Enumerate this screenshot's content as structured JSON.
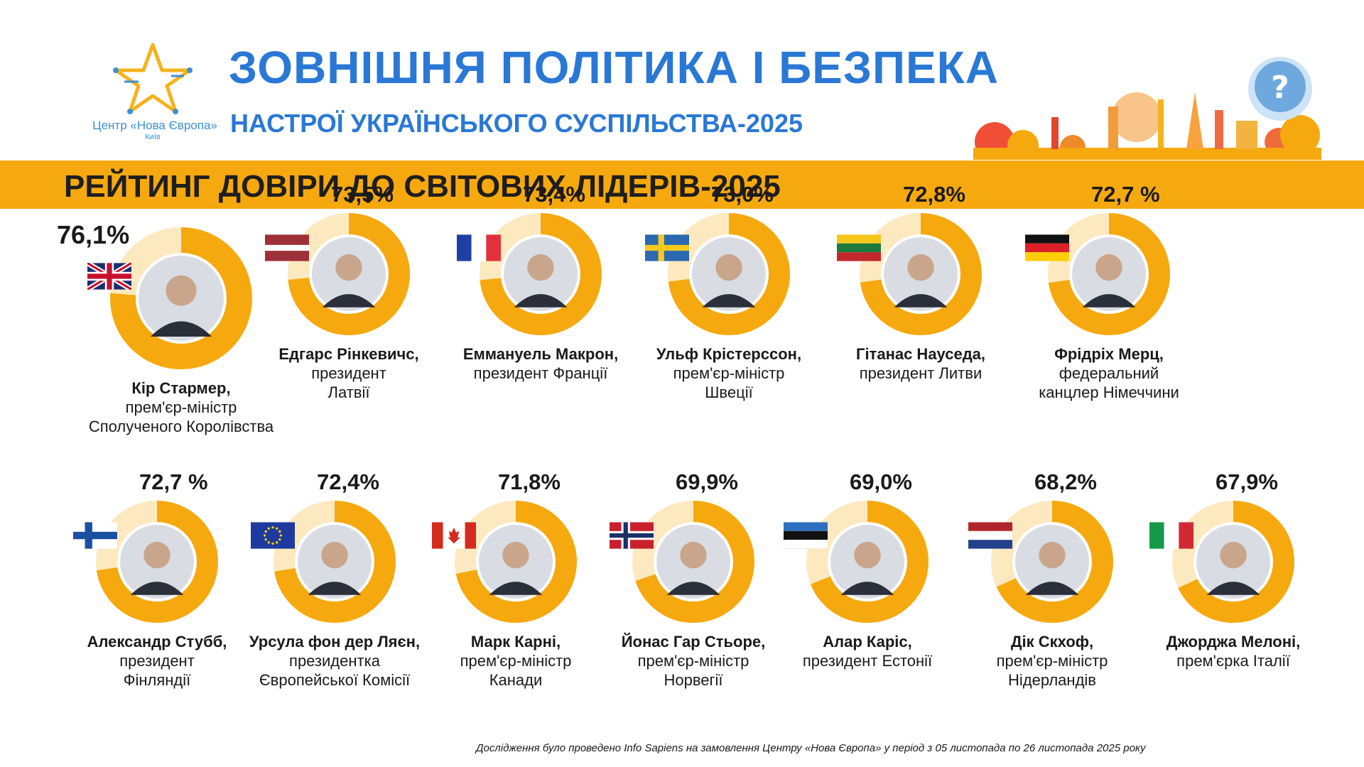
{
  "logo": {
    "name": "Центр «Нова Європа»",
    "city": "Київ"
  },
  "header": {
    "title": "ЗОВНІШНЯ ПОЛІТИКА І БЕЗПЕКА",
    "subtitle": "НАСТРОЇ УКРАЇНСЬКОГО СУСПІЛЬСТВА-2025"
  },
  "banner": "РЕЙТИНГ ДОВІРИ ДО СВІТОВИХ ЛІДЕРІВ-2025",
  "footnote": "Дослідження було проведено Info Sapiens на замовлення Центру «Нова Європа» у період з 05 листопада по 26 листопада 2025 року",
  "colors": {
    "accent": "#f6a90e",
    "title": "#2a78d6",
    "ring_bg": "#fde9bf"
  },
  "chart_data": {
    "type": "bar",
    "title": "РЕЙТИНГ ДОВІРИ ДО СВІТОВИХ ЛІДЕРІВ-2025",
    "unit": "%",
    "leaders": [
      {
        "label": "76,1%",
        "value": 76.1,
        "name": "Кір Стармер,",
        "role1": "прем'єр-міністр",
        "role2": "Сполученого Королівства",
        "flag": "uk"
      },
      {
        "label": "73,5%",
        "value": 73.5,
        "name": "Едгарс Рінкевичс,",
        "role1": "президент",
        "role2": "Латвії",
        "flag": "lv"
      },
      {
        "label": "73,4%",
        "value": 73.4,
        "name": "Еммануель Макрон,",
        "role1": "президент Франції",
        "role2": "",
        "flag": "fr"
      },
      {
        "label": "73,0%",
        "value": 73.0,
        "name": "Ульф Крістерссон,",
        "role1": "прем'єр-міністр",
        "role2": "Швеції",
        "flag": "se"
      },
      {
        "label": "72,8%",
        "value": 72.8,
        "name": "Гітанас Науседа,",
        "role1": "президент Литви",
        "role2": "",
        "flag": "lt"
      },
      {
        "label": "72,7 %",
        "value": 72.7,
        "name": "Фрідріх Мерц,",
        "role1": "федеральний",
        "role2": "канцлер Німеччини",
        "flag": "de"
      },
      {
        "label": "72,7 %",
        "value": 72.7,
        "name": "Александр Стубб,",
        "role1": "президент",
        "role2": "Фінляндії",
        "flag": "fi"
      },
      {
        "label": "72,4%",
        "value": 72.4,
        "name": "Урсула фон дер Ляєн,",
        "role1": "президентка",
        "role2": "Європейської Комісії",
        "flag": "eu"
      },
      {
        "label": "71,8%",
        "value": 71.8,
        "name": "Марк Карні,",
        "role1": "прем'єр-міністр",
        "role2": "Канади",
        "flag": "ca"
      },
      {
        "label": "69,9%",
        "value": 69.9,
        "name": "Йонас Гар Стьоре,",
        "role1": "прем'єр-міністр",
        "role2": "Норвегії",
        "flag": "no"
      },
      {
        "label": "69,0%",
        "value": 69.0,
        "name": "Алар Каріс,",
        "role1": "президент Естонії",
        "role2": "",
        "flag": "ee"
      },
      {
        "label": "68,2%",
        "value": 68.2,
        "name": "Дік Скхоф,",
        "role1": "прем'єр-міністр",
        "role2": "Нідерландів",
        "flag": "nl"
      },
      {
        "label": "67,9%",
        "value": 67.9,
        "name": "Джорджа Мелоні,",
        "role1": "прем'єрка Італії",
        "role2": "",
        "flag": "it"
      }
    ]
  }
}
